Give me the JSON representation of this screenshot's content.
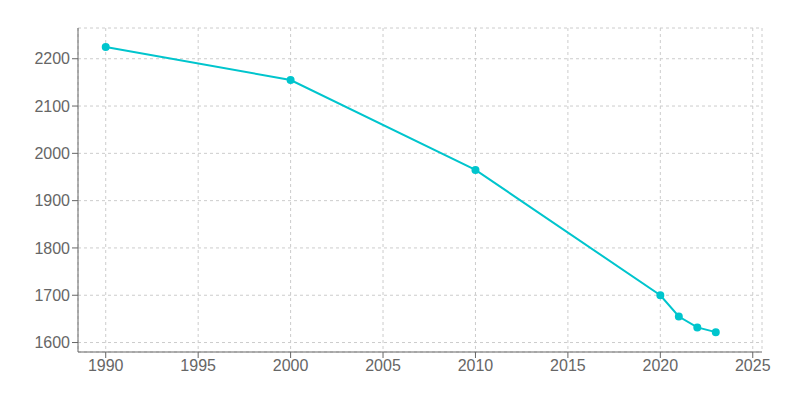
{
  "chart_data": {
    "type": "line",
    "x": [
      1990,
      2000,
      2010,
      2020,
      2021,
      2022,
      2023
    ],
    "values": [
      2225,
      2155,
      1965,
      1700,
      1655,
      1632,
      1622
    ],
    "color": "#00c5cd",
    "marker": "circle",
    "xlim": [
      1988.5,
      2025.5
    ],
    "ylim": [
      1580,
      2265
    ],
    "xticks": [
      1990,
      1995,
      2000,
      2005,
      2010,
      2015,
      2020,
      2025
    ],
    "yticks": [
      1600,
      1700,
      1800,
      1900,
      2000,
      2100,
      2200
    ],
    "grid": true
  }
}
